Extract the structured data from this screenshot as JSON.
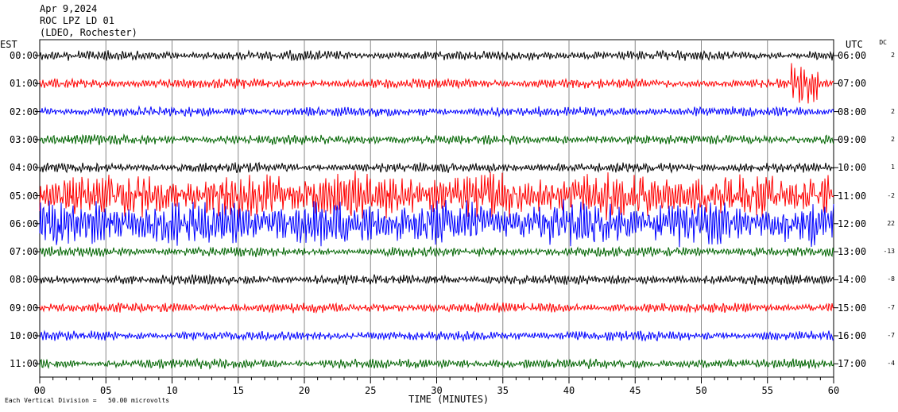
{
  "header": {
    "date": "Apr 9,2024",
    "station": "ROC LPZ LD 01",
    "network": "(LDEO, Rochester)"
  },
  "left_axis_title": "EST",
  "right_axis_title": "UTC",
  "dc_title": "DC",
  "xlabel": "TIME (MINUTES)",
  "footer_note": "Each Vertical Division =   50.00 microvolts",
  "colors": {
    "black": "#000000",
    "red": "#ff0000",
    "blue": "#0000ff",
    "green": "#006400",
    "grid": "#888888"
  },
  "chart_data": {
    "type": "line",
    "title": "ROC LPZ LD 01",
    "xlabel": "TIME (MINUTES)",
    "xlim": [
      0,
      60
    ],
    "x_ticks": [
      "00",
      "05",
      "10",
      "15",
      "20",
      "25",
      "30",
      "35",
      "40",
      "45",
      "50",
      "55",
      "60"
    ],
    "series": [
      {
        "est": "00:00",
        "utc": "06:00",
        "dc": "2",
        "color": "black",
        "activity": "background noise"
      },
      {
        "est": "01:00",
        "utc": "07:00",
        "dc": "",
        "color": "red",
        "activity": "background noise, large oscillations near 57-58 min"
      },
      {
        "est": "02:00",
        "utc": "08:00",
        "dc": "2",
        "color": "blue",
        "activity": "background noise"
      },
      {
        "est": "03:00",
        "utc": "09:00",
        "dc": "2",
        "color": "green",
        "activity": "background noise"
      },
      {
        "est": "04:00",
        "utc": "10:00",
        "dc": "1",
        "color": "black",
        "activity": "background noise"
      },
      {
        "est": "05:00",
        "utc": "11:00",
        "dc": "-2",
        "color": "red",
        "activity": "large oscillations"
      },
      {
        "est": "06:00",
        "utc": "12:00",
        "dc": "22",
        "color": "blue",
        "activity": "large oscillations"
      },
      {
        "est": "07:00",
        "utc": "13:00",
        "dc": "-13",
        "color": "green",
        "activity": "background noise"
      },
      {
        "est": "08:00",
        "utc": "14:00",
        "dc": "-8",
        "color": "black",
        "activity": "background noise"
      },
      {
        "est": "09:00",
        "utc": "15:00",
        "dc": "-7",
        "color": "red",
        "activity": "background noise"
      },
      {
        "est": "10:00",
        "utc": "16:00",
        "dc": "-7",
        "color": "blue",
        "activity": "background noise"
      },
      {
        "est": "11:00",
        "utc": "17:00",
        "dc": "-4",
        "color": "green",
        "activity": "background noise"
      }
    ]
  }
}
